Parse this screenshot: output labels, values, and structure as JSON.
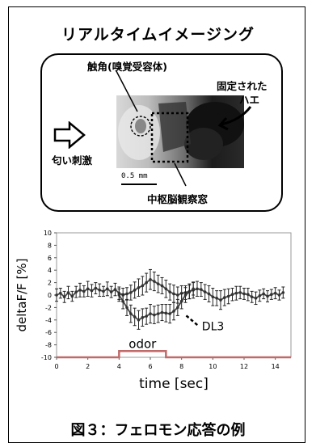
{
  "diagram": {
    "title": "リアルタイムイメージング",
    "labels": {
      "antenna": "触角(嗅覚受容体)",
      "fixed_fly": "固定されたハエ",
      "fixed_fly_line1": "固定された",
      "fixed_fly_line2": "ハエ",
      "odor_stimulus": "匂い刺激",
      "scale": "0.5 mm",
      "window": "中枢脳観察窓"
    },
    "icons": [
      "hollow-arrow-right-icon"
    ],
    "caption": "図３：フェロモン応答の例"
  },
  "chart_data": {
    "type": "line",
    "xlabel": "time [sec]",
    "ylabel": "deltaF/F [%]",
    "xlim": [
      0,
      15
    ],
    "ylim": [
      -10,
      10
    ],
    "xticks": [
      0,
      2,
      4,
      6,
      8,
      10,
      12,
      14
    ],
    "yticks": [
      -10,
      -8,
      -6,
      -4,
      -2,
      0,
      2,
      4,
      6,
      8,
      10
    ],
    "grid": false,
    "annotation": "DL3",
    "stimulus": {
      "label": "odor",
      "start": 4,
      "end": 7,
      "low": -10,
      "high": -9
    },
    "series": [
      {
        "name": "",
        "x": [
          0,
          0.25,
          0.5,
          0.75,
          1,
          1.25,
          1.5,
          1.75,
          2,
          2.25,
          2.5,
          2.75,
          3,
          3.25,
          3.5,
          3.75,
          4,
          4.25,
          4.5,
          4.75,
          5,
          5.25,
          5.5,
          5.75,
          6,
          6.25,
          6.5,
          6.75,
          7,
          7.25,
          7.5,
          7.75,
          8,
          8.25,
          8.5,
          8.75,
          9,
          9.25,
          9.5,
          9.75,
          10,
          10.25,
          10.5,
          10.75,
          11,
          11.25,
          11.5,
          11.75,
          12,
          12.25,
          12.5,
          12.75,
          13,
          13.25,
          13.5,
          13.75,
          14,
          14.25,
          14.5
        ],
        "y": [
          0,
          0.3,
          -0.3,
          0.4,
          -0.2,
          0.5,
          0.8,
          0.6,
          1.0,
          0.7,
          1.1,
          0.8,
          0.6,
          1.0,
          0.5,
          0.9,
          0.3,
          0.0,
          0.2,
          0.4,
          0.8,
          1.2,
          1.5,
          2.0,
          2.5,
          2.2,
          1.8,
          1.5,
          1.0,
          0.5,
          0.2,
          0.0,
          0.3,
          0.4,
          0.6,
          0.8,
          1.0,
          0.9,
          0.5,
          0.2,
          -0.3,
          -0.5,
          -0.8,
          -0.4,
          -0.2,
          0.1,
          0.3,
          0.4,
          0.2,
          0.1,
          -0.3,
          -0.5,
          -0.1,
          0.2,
          -0.2,
          0.1,
          0.3,
          0.0,
          0.4
        ],
        "err": [
          1.0,
          0.8,
          0.9,
          1.0,
          0.8,
          0.9,
          1.1,
          0.9,
          1.2,
          1.0,
          0.9,
          1.0,
          0.8,
          1.1,
          0.9,
          1.0,
          1.0,
          1.1,
          1.0,
          1.2,
          1.3,
          1.4,
          1.5,
          1.5,
          1.6,
          1.5,
          1.4,
          1.3,
          1.4,
          1.3,
          1.4,
          1.3,
          1.2,
          1.1,
          1.2,
          1.3,
          1.2,
          1.1,
          1.2,
          1.3,
          1.4,
          1.2,
          1.5,
          1.3,
          1.2,
          1.0,
          1.1,
          1.0,
          0.9,
          1.0,
          0.9,
          1.0,
          0.9,
          0.8,
          0.9,
          0.8,
          0.9,
          0.8,
          0.9
        ]
      },
      {
        "name": "DL3",
        "x": [
          4,
          4.25,
          4.5,
          4.75,
          5,
          5.25,
          5.5,
          5.75,
          6,
          6.25,
          6.5,
          6.75,
          7,
          7.25,
          7.5,
          7.75,
          8,
          8.25,
          8.5,
          8.75
        ],
        "y": [
          0.0,
          -1.0,
          -2.0,
          -3.0,
          -3.5,
          -4.0,
          -3.6,
          -3.4,
          -3.0,
          -3.2,
          -3.0,
          -2.8,
          -2.9,
          -3.0,
          -2.6,
          -2.0,
          -1.0,
          0.0,
          0.5,
          1.0
        ],
        "err": [
          1.0,
          1.2,
          1.3,
          1.4,
          1.4,
          1.5,
          1.4,
          1.3,
          1.5,
          1.4,
          1.4,
          1.3,
          1.4,
          1.5,
          1.4,
          1.3,
          1.2,
          1.2,
          1.1,
          1.0
        ]
      }
    ]
  }
}
